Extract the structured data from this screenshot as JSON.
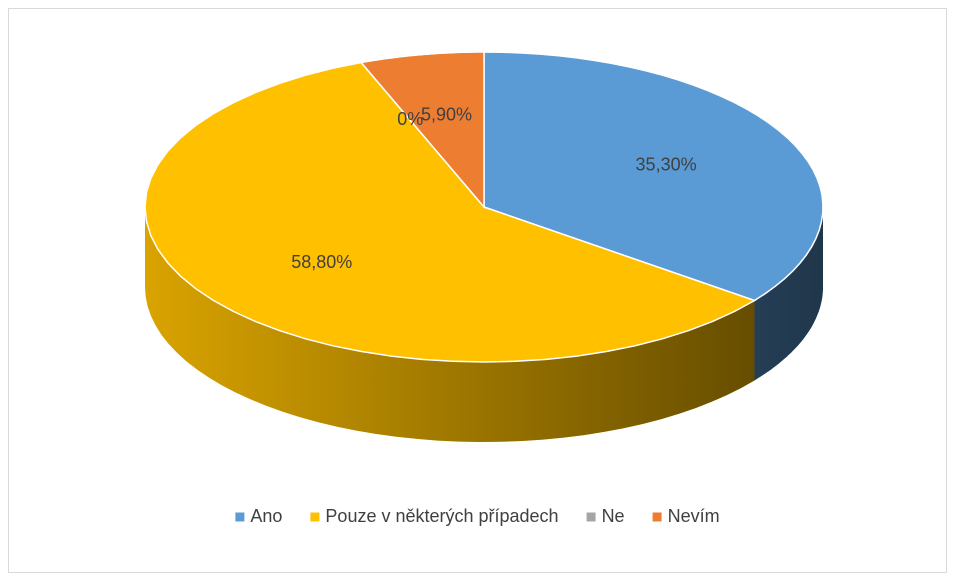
{
  "chart_data": {
    "type": "pie",
    "categories": [
      "Ano",
      "Pouze v některých případech",
      "Ne",
      "Nevím"
    ],
    "values": [
      35.3,
      58.8,
      0,
      5.9
    ],
    "value_labels": [
      "35,30%",
      "58,80%",
      "0%",
      "5,90%"
    ],
    "colors": [
      "#5b9bd5",
      "#ffc000",
      "#a5a5a5",
      "#ed7d31"
    ],
    "legend": "bottom"
  }
}
